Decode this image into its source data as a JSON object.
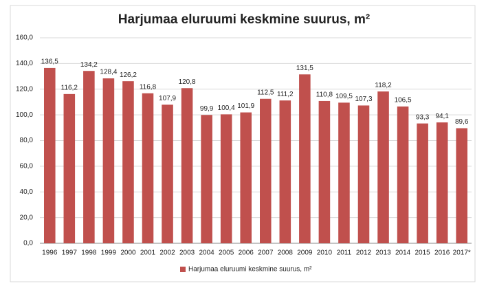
{
  "chart_data": {
    "type": "bar",
    "title": "Harjumaa eluruumi keskmine suurus, m²",
    "categories": [
      "1996",
      "1997",
      "1998",
      "1999",
      "2000",
      "2001",
      "2002",
      "2003",
      "2004",
      "2005",
      "2006",
      "2007",
      "2008",
      "2009",
      "2010",
      "2011",
      "2012",
      "2013",
      "2014",
      "2015",
      "2016",
      "2017*"
    ],
    "series": [
      {
        "name": "Harjumaa eluruumi keskmine suurus, m²",
        "color": "#c0504d",
        "values": [
          136.5,
          116.2,
          134.2,
          128.4,
          126.2,
          116.8,
          107.9,
          120.8,
          99.9,
          100.4,
          101.9,
          112.5,
          111.2,
          131.5,
          110.8,
          109.5,
          107.3,
          118.2,
          106.5,
          93.3,
          94.1,
          89.6
        ],
        "value_labels": [
          "136,5",
          "116,2",
          "134,2",
          "128,4",
          "126,2",
          "116,8",
          "107,9",
          "120,8",
          "99,9",
          "100,4",
          "101,9",
          "112,5",
          "111,2",
          "131,5",
          "110,8",
          "109,5",
          "107,3",
          "118,2",
          "106,5",
          "93,3",
          "94,1",
          "89,6"
        ]
      }
    ],
    "ylim": [
      0,
      160
    ],
    "yticks": [
      {
        "value": 0,
        "label": "0,0"
      },
      {
        "value": 20,
        "label": "20,0"
      },
      {
        "value": 40,
        "label": "40,0"
      },
      {
        "value": 60,
        "label": "60,0"
      },
      {
        "value": 80,
        "label": "80,0"
      },
      {
        "value": 100,
        "label": "100,0"
      },
      {
        "value": 120,
        "label": "120,0"
      },
      {
        "value": 140,
        "label": "140,0"
      },
      {
        "value": 160,
        "label": "160,0"
      }
    ],
    "grid": true,
    "legend": "bottom"
  }
}
